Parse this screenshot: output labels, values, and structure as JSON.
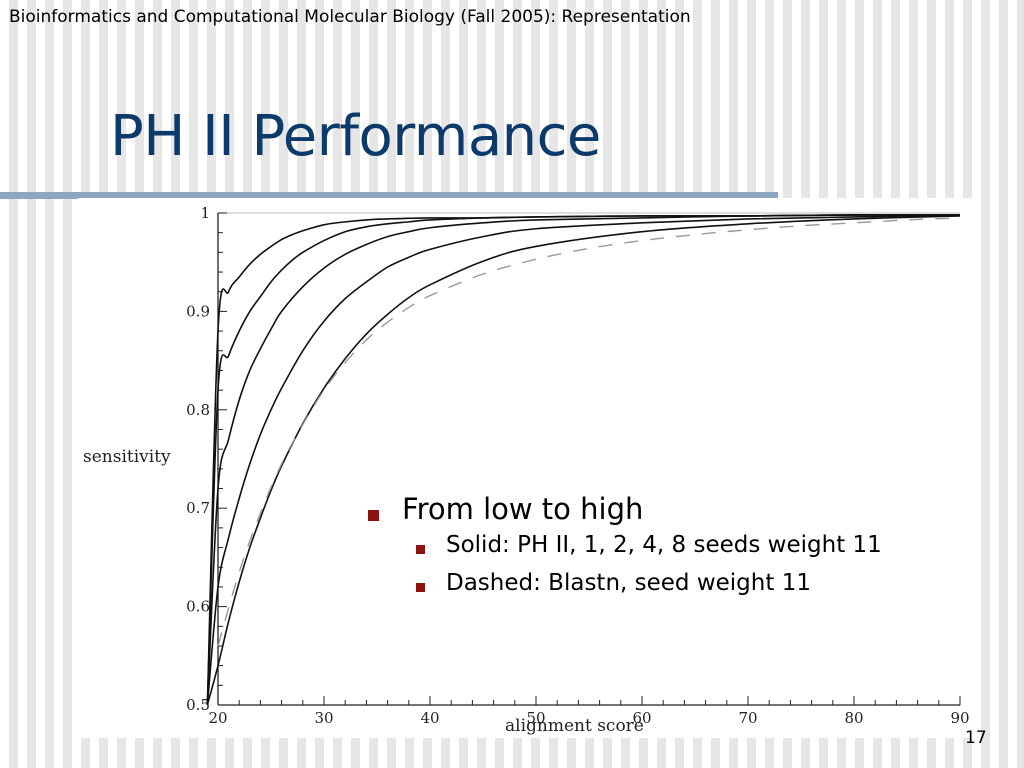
{
  "header": {
    "text": "Bioinformatics and Computational Molecular Biology (Fall 2005): Representation"
  },
  "slide": {
    "title": "PH II Performance",
    "number": "17"
  },
  "bullets": {
    "level1": "From low to high",
    "level2": [
      "Solid: PH II, 1, 2, 4, 8 seeds weight 11",
      "Dashed: Blastn, seed weight 11"
    ]
  },
  "colors": {
    "title": "#0b3a6b",
    "bullet": "#8b1410",
    "rule": "#8ea6bf"
  },
  "chart_data": {
    "type": "line",
    "xlabel": "alignment  score",
    "ylabel": "sensitivity",
    "xlim": [
      20,
      90
    ],
    "ylim": [
      0.5,
      1
    ],
    "xticks": [
      20,
      30,
      40,
      50,
      60,
      70,
      80,
      90
    ],
    "yticks": [
      0.5,
      0.6,
      0.7,
      0.8,
      0.9,
      1
    ],
    "ytick_labels": [
      "0.5",
      "0.6",
      "0.7",
      "0.8",
      "0.9",
      "1"
    ],
    "grid": false,
    "series": [
      {
        "style": "solid",
        "x": [
          19,
          20,
          21,
          22,
          23,
          24,
          25,
          26,
          27,
          28,
          30,
          32,
          34,
          36,
          40,
          45,
          50,
          60,
          70,
          80,
          90
        ],
        "y": [
          0.5,
          0.88,
          0.92,
          0.935,
          0.948,
          0.958,
          0.966,
          0.973,
          0.978,
          0.982,
          0.988,
          0.991,
          0.993,
          0.994,
          0.995,
          0.995,
          0.996,
          0.997,
          0.997,
          0.998,
          0.998
        ]
      },
      {
        "style": "solid",
        "x": [
          19,
          20,
          21,
          22,
          23,
          24,
          25,
          26,
          27,
          28,
          30,
          32,
          34,
          36,
          38,
          40,
          45,
          50,
          60,
          70,
          80,
          90
        ],
        "y": [
          0.5,
          0.82,
          0.855,
          0.88,
          0.9,
          0.915,
          0.93,
          0.942,
          0.952,
          0.96,
          0.972,
          0.981,
          0.986,
          0.989,
          0.991,
          0.993,
          0.995,
          0.996,
          0.997,
          0.997,
          0.998,
          0.998
        ]
      },
      {
        "style": "solid",
        "x": [
          19,
          20,
          21,
          22,
          23,
          24,
          25,
          26,
          28,
          30,
          32,
          34,
          36,
          38,
          40,
          45,
          50,
          60,
          70,
          80,
          90
        ],
        "y": [
          0.5,
          0.72,
          0.77,
          0.81,
          0.84,
          0.862,
          0.882,
          0.9,
          0.925,
          0.944,
          0.958,
          0.968,
          0.976,
          0.981,
          0.985,
          0.99,
          0.993,
          0.995,
          0.997,
          0.998,
          0.998
        ]
      },
      {
        "style": "solid",
        "x": [
          19,
          20,
          21,
          22,
          23,
          24,
          25,
          26,
          28,
          30,
          32,
          34,
          36,
          38,
          40,
          45,
          50,
          60,
          70,
          80,
          90
        ],
        "y": [
          0.5,
          0.62,
          0.67,
          0.71,
          0.745,
          0.775,
          0.8,
          0.822,
          0.86,
          0.89,
          0.913,
          0.93,
          0.945,
          0.955,
          0.963,
          0.976,
          0.984,
          0.99,
          0.994,
          0.996,
          0.998
        ]
      },
      {
        "style": "solid",
        "x": [
          19,
          20,
          21,
          22,
          23,
          24,
          25,
          26,
          28,
          30,
          32,
          34,
          36,
          38,
          40,
          45,
          50,
          60,
          70,
          80,
          90
        ],
        "y": [
          0.5,
          0.54,
          0.585,
          0.625,
          0.66,
          0.69,
          0.718,
          0.743,
          0.786,
          0.822,
          0.852,
          0.877,
          0.897,
          0.914,
          0.927,
          0.951,
          0.966,
          0.981,
          0.989,
          0.994,
          0.997
        ]
      },
      {
        "style": "dashed",
        "x": [
          20,
          22,
          24,
          26,
          28,
          30,
          32,
          34,
          36,
          38,
          40,
          45,
          50,
          55,
          60,
          65,
          70,
          75,
          80,
          85,
          90
        ],
        "y": [
          0.56,
          0.635,
          0.695,
          0.745,
          0.785,
          0.82,
          0.848,
          0.871,
          0.889,
          0.904,
          0.916,
          0.938,
          0.953,
          0.964,
          0.972,
          0.978,
          0.983,
          0.987,
          0.99,
          0.993,
          0.995
        ]
      }
    ]
  }
}
